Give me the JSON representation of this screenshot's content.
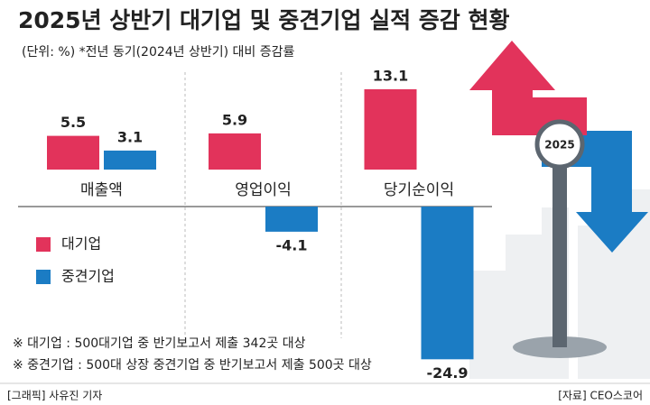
{
  "chart_data": {
    "type": "bar",
    "title": "2025년 상반기 대기업 및 중견기업 실적 증감 현황",
    "subtitle": "(단위: %)  *전년 동기(2024년 상반기) 대비 증감률",
    "categories": [
      "매출액",
      "영업이익",
      "당기순이익"
    ],
    "series": [
      {
        "name": "대기업",
        "color": "#e2335b",
        "values": [
          5.5,
          5.9,
          13.1
        ]
      },
      {
        "name": "중견기업",
        "color": "#1b7cc4",
        "values": [
          3.1,
          -4.1,
          -24.9
        ]
      }
    ],
    "notes": [
      "※ 대기업 : 500대기업 중 반기보고서 제출 342곳 대상",
      "※ 중견기업 : 500대 상장 중견기업 중 반기보고서 제출 500곳 대상"
    ]
  },
  "decoration": {
    "sign_label": "2025"
  },
  "footer": {
    "credit": "[그래픽] 사유진 기자",
    "source": "[자료] CEO스코어"
  }
}
